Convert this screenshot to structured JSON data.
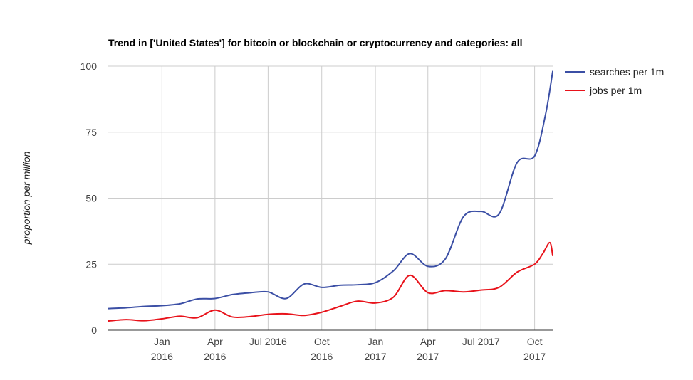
{
  "chart_data": {
    "type": "line",
    "title": "Trend in ['United States'] for bitcoin or blockchain or cryptocurrency and categories: all",
    "xlabel": "",
    "ylabel": "proportion per million",
    "ylim": [
      0,
      100
    ],
    "xlim": [
      "2015-10-01",
      "2017-11-01"
    ],
    "y_ticks": [
      "0",
      "25",
      "50",
      "75",
      "100"
    ],
    "x_ticks": [
      {
        "date": "2016-01-01",
        "line1": "Jan",
        "line2": "2016"
      },
      {
        "date": "2016-04-01",
        "line1": "Apr",
        "line2": "2016"
      },
      {
        "date": "2016-07-01",
        "line1": "Jul 2016",
        "line2": ""
      },
      {
        "date": "2016-10-01",
        "line1": "Oct",
        "line2": "2016"
      },
      {
        "date": "2017-01-01",
        "line1": "Jan",
        "line2": "2017"
      },
      {
        "date": "2017-04-01",
        "line1": "Apr",
        "line2": "2017"
      },
      {
        "date": "2017-07-01",
        "line1": "Jul 2017",
        "line2": ""
      },
      {
        "date": "2017-10-01",
        "line1": "Oct",
        "line2": "2017"
      }
    ],
    "grid": true,
    "legend_position": "right",
    "series": [
      {
        "name": "searches per 1m",
        "color": "#3b4fa5",
        "points": [
          [
            "2015-10-01",
            8.2
          ],
          [
            "2015-11-01",
            8.5
          ],
          [
            "2015-12-01",
            9.0
          ],
          [
            "2016-01-01",
            9.3
          ],
          [
            "2016-02-01",
            10.0
          ],
          [
            "2016-03-01",
            11.8
          ],
          [
            "2016-04-01",
            12.0
          ],
          [
            "2016-05-01",
            13.5
          ],
          [
            "2016-06-01",
            14.2
          ],
          [
            "2016-07-01",
            14.5
          ],
          [
            "2016-08-01",
            12.0
          ],
          [
            "2016-09-01",
            17.5
          ],
          [
            "2016-10-01",
            16.2
          ],
          [
            "2016-11-01",
            17.0
          ],
          [
            "2016-12-01",
            17.2
          ],
          [
            "2017-01-01",
            18.0
          ],
          [
            "2017-02-01",
            22.5
          ],
          [
            "2017-03-01",
            29.0
          ],
          [
            "2017-04-01",
            24.2
          ],
          [
            "2017-05-01",
            27.0
          ],
          [
            "2017-06-01",
            43.0
          ],
          [
            "2017-07-01",
            45.0
          ],
          [
            "2017-08-01",
            44.0
          ],
          [
            "2017-09-01",
            63.5
          ],
          [
            "2017-10-01",
            66.0
          ],
          [
            "2017-10-20",
            82.0
          ],
          [
            "2017-11-01",
            98.0
          ]
        ]
      },
      {
        "name": "jobs per 1m",
        "color": "#e8121a",
        "points": [
          [
            "2015-10-01",
            3.5
          ],
          [
            "2015-11-01",
            4.0
          ],
          [
            "2015-12-01",
            3.6
          ],
          [
            "2016-01-01",
            4.3
          ],
          [
            "2016-02-01",
            5.3
          ],
          [
            "2016-03-01",
            4.7
          ],
          [
            "2016-04-01",
            7.6
          ],
          [
            "2016-05-01",
            5.0
          ],
          [
            "2016-06-01",
            5.2
          ],
          [
            "2016-07-01",
            6.0
          ],
          [
            "2016-08-01",
            6.2
          ],
          [
            "2016-09-01",
            5.6
          ],
          [
            "2016-10-01",
            6.8
          ],
          [
            "2016-11-01",
            9.0
          ],
          [
            "2016-12-01",
            11.0
          ],
          [
            "2017-01-01",
            10.3
          ],
          [
            "2017-02-01",
            12.5
          ],
          [
            "2017-03-01",
            20.8
          ],
          [
            "2017-04-01",
            14.2
          ],
          [
            "2017-05-01",
            15.0
          ],
          [
            "2017-06-01",
            14.5
          ],
          [
            "2017-07-01",
            15.2
          ],
          [
            "2017-08-01",
            16.2
          ],
          [
            "2017-09-01",
            22.0
          ],
          [
            "2017-10-01",
            25.0
          ],
          [
            "2017-10-15",
            29.0
          ],
          [
            "2017-10-27",
            33.2
          ],
          [
            "2017-11-01",
            28.3
          ]
        ]
      }
    ]
  }
}
